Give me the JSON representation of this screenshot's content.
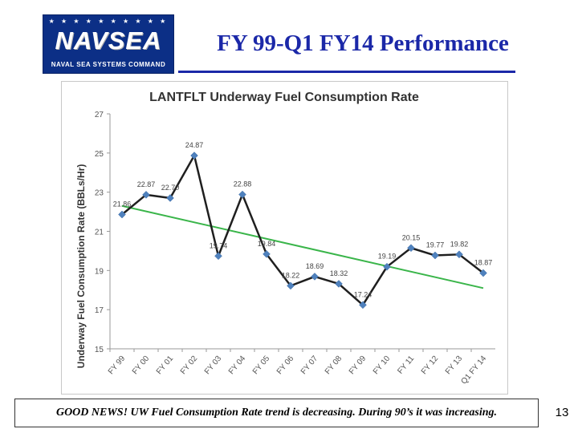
{
  "logo": {
    "word": "NAVSEA",
    "subtitle": "NAVAL SEA SYSTEMS COMMAND",
    "icon": "navsea-logo"
  },
  "slide": {
    "title": "FY 99-Q1 FY14 Performance",
    "footer_text": "GOOD NEWS! UW Fuel Consumption Rate trend is decreasing.  During 90’s it was increasing.",
    "page_number": "13"
  },
  "colors": {
    "title": "#1b28a8",
    "series": "#1f1f1f",
    "marker": "#4f81bd",
    "trend": "#3ab54a"
  },
  "chart_data": {
    "type": "line",
    "title": "LANTFLT Underway Fuel Consumption Rate",
    "xlabel": "",
    "ylabel": "Underway Fuel Consumption Rate (BBLs/Hr)",
    "categories": [
      "FY 99",
      "FY 00",
      "FY 01",
      "FY 02",
      "FY 03",
      "FY 04",
      "FY 05",
      "FY 06",
      "FY 07",
      "FY 08",
      "FY 09",
      "FY 10",
      "FY 11",
      "FY 12",
      "FY 13",
      "Q1 FY 14"
    ],
    "series": [
      {
        "values": [
          21.86,
          22.87,
          22.7,
          24.87,
          19.74,
          22.88,
          19.84,
          18.22,
          18.69,
          18.32,
          17.24,
          19.19,
          20.15,
          19.77,
          19.82,
          18.87
        ]
      }
    ],
    "data_labels": [
      "21.86",
      "22.87",
      "22.70",
      "24.87",
      "19.74",
      "22.88",
      "19.84",
      "18.22",
      "18.69",
      "18.32",
      "17.24",
      "19.19",
      "20.15",
      "19.77",
      "19.82",
      "18.87"
    ],
    "trendline": {
      "start": 22.3,
      "end": 18.1
    },
    "ylim": [
      15,
      27
    ],
    "yticks": [
      15,
      17,
      19,
      21,
      23,
      25,
      27
    ],
    "ytick_labels": [
      "15",
      "17",
      "19",
      "21",
      "23",
      "25",
      "27"
    ],
    "grid": false,
    "legend": "none"
  }
}
